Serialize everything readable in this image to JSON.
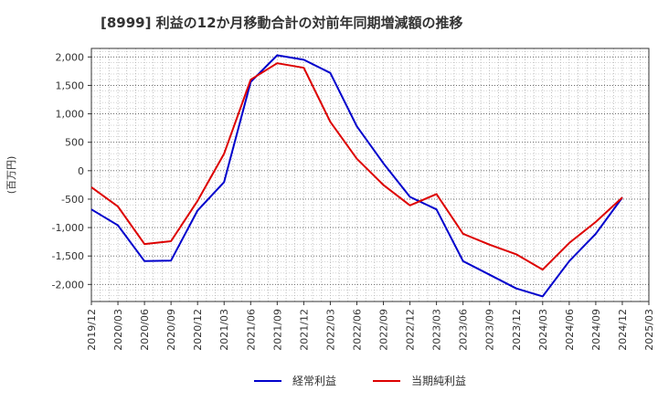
{
  "chart_data": {
    "type": "line",
    "title": "[8999]  利益の12か月移動合計の対前年同期増減額の推移",
    "ylabel": "(百万円)",
    "xlabel": "",
    "ylim": [
      -2300,
      2150
    ],
    "yticks": [
      2000,
      1500,
      1000,
      500,
      0,
      -500,
      -1000,
      -1500,
      -2000
    ],
    "ytick_labels": [
      "2,000",
      "1,500",
      "1,000",
      "500",
      "0",
      "-500",
      "-1,000",
      "-1,500",
      "-2,000"
    ],
    "categories": [
      "2019/12",
      "2020/03",
      "2020/06",
      "2020/09",
      "2020/12",
      "2021/03",
      "2021/06",
      "2021/09",
      "2021/12",
      "2022/03",
      "2022/06",
      "2022/09",
      "2022/12",
      "2023/03",
      "2023/06",
      "2023/09",
      "2023/12",
      "2024/03",
      "2024/06",
      "2024/09",
      "2024/12",
      "2025/03"
    ],
    "grid": true,
    "legend_position": "bottom",
    "series": [
      {
        "name": "経常利益",
        "color": "#0000cc",
        "values": [
          -680,
          -960,
          -1590,
          -1580,
          -700,
          -200,
          1560,
          2030,
          1950,
          1720,
          780,
          130,
          -460,
          -680,
          -1590,
          -1830,
          -2070,
          -2210,
          -1590,
          -1110,
          -470,
          null
        ]
      },
      {
        "name": "当期純利益",
        "color": "#dd0000",
        "values": [
          -290,
          -630,
          -1290,
          -1240,
          -530,
          300,
          1600,
          1890,
          1810,
          860,
          210,
          -250,
          -610,
          -410,
          -1110,
          -1300,
          -1470,
          -1740,
          -1270,
          -900,
          -470,
          null
        ]
      }
    ]
  }
}
